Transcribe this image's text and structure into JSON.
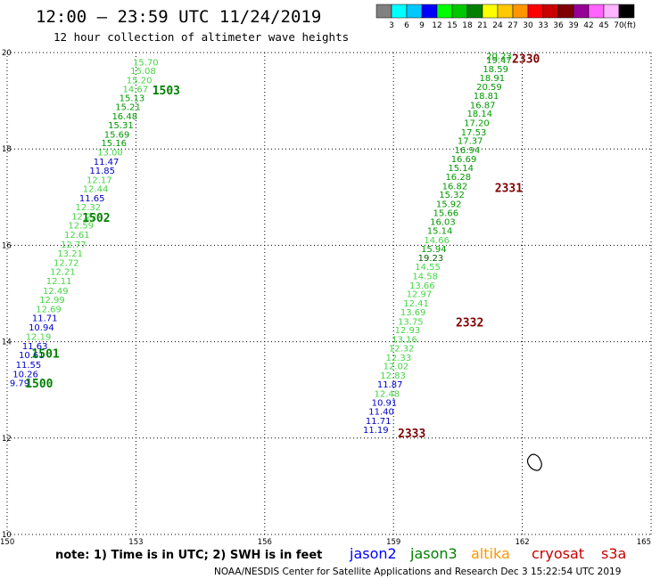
{
  "title": "12:00 – 23:59 UTC 11/24/2019",
  "subtitle": "12 hour collection of altimeter wave heights",
  "color_scale": {
    "unit": "(ft)",
    "labels": [
      "3",
      "6",
      "9",
      "12",
      "15",
      "18",
      "21",
      "24",
      "27",
      "30",
      "33",
      "36",
      "39",
      "42",
      "45",
      "70"
    ],
    "colors": [
      "#808080",
      "#00ffff",
      "#00c8ff",
      "#0000ff",
      "#00ff00",
      "#00c800",
      "#008000",
      "#ffff00",
      "#ffc800",
      "#ff9600",
      "#ff0000",
      "#c80000",
      "#800000",
      "#960096",
      "#ff64ff",
      "#ffb4ff",
      "#000000"
    ]
  },
  "note": "note:  1) Time is in UTC;  2) SWH is in feet",
  "satellites": [
    {
      "name": "jason2",
      "color": "#0000ff"
    },
    {
      "name": "jason3",
      "color": "#008000"
    },
    {
      "name": "altika",
      "color": "#ff9600"
    },
    {
      "name": "cryosat",
      "color": "#c80000"
    },
    {
      "name": "s3a",
      "color": "#c80000"
    }
  ],
  "footer": "NOAA/NESDIS Center for Satellite Applications and Research    Dec  3 15:22:54 UTC 2019",
  "chart_data": {
    "type": "scatter",
    "xlim": [
      150,
      165
    ],
    "ylim": [
      10,
      20
    ],
    "x_ticks": [
      "150",
      "153",
      "156",
      "159",
      "162",
      "165"
    ],
    "y_ticks": [
      "10",
      "12",
      "14",
      "16",
      "18",
      "20"
    ],
    "grid": true,
    "point_colors": {
      "lightgreen": "#44d644",
      "green": "#009900",
      "darkgreen": "#006400",
      "blue": "#0000cc"
    },
    "points": [
      {
        "x": 152.93,
        "y": 19.8,
        "v": "15.70",
        "c": "lightgreen"
      },
      {
        "x": 152.87,
        "y": 19.62,
        "v": "15.08",
        "c": "lightgreen"
      },
      {
        "x": 152.78,
        "y": 19.43,
        "v": "15.20",
        "c": "lightgreen"
      },
      {
        "x": 152.69,
        "y": 19.24,
        "v": "14.67",
        "c": "lightgreen"
      },
      {
        "x": 152.61,
        "y": 19.06,
        "v": "15.13",
        "c": "green"
      },
      {
        "x": 152.52,
        "y": 18.87,
        "v": "15.21",
        "c": "green"
      },
      {
        "x": 152.44,
        "y": 18.68,
        "v": "16.48",
        "c": "green"
      },
      {
        "x": 152.35,
        "y": 18.49,
        "v": "15.31",
        "c": "green"
      },
      {
        "x": 152.26,
        "y": 18.3,
        "v": "15.69",
        "c": "green"
      },
      {
        "x": 152.19,
        "y": 18.12,
        "v": "15.16",
        "c": "green"
      },
      {
        "x": 152.1,
        "y": 17.93,
        "v": "13.00",
        "c": "lightgreen"
      },
      {
        "x": 152.01,
        "y": 17.74,
        "v": "11.47",
        "c": "blue"
      },
      {
        "x": 151.92,
        "y": 17.55,
        "v": "11.85",
        "c": "blue"
      },
      {
        "x": 151.85,
        "y": 17.36,
        "v": "12.17",
        "c": "lightgreen"
      },
      {
        "x": 151.76,
        "y": 17.17,
        "v": "12.44",
        "c": "lightgreen"
      },
      {
        "x": 151.68,
        "y": 16.98,
        "v": "11.65",
        "c": "blue"
      },
      {
        "x": 151.59,
        "y": 16.79,
        "v": "12.32",
        "c": "lightgreen"
      },
      {
        "x": 151.5,
        "y": 16.6,
        "v": "12.22",
        "c": "lightgreen"
      },
      {
        "x": 151.42,
        "y": 16.41,
        "v": "12.59",
        "c": "lightgreen"
      },
      {
        "x": 151.33,
        "y": 16.22,
        "v": "12.61",
        "c": "lightgreen"
      },
      {
        "x": 151.25,
        "y": 16.02,
        "v": "12.77",
        "c": "lightgreen"
      },
      {
        "x": 151.17,
        "y": 15.83,
        "v": "13.21",
        "c": "lightgreen"
      },
      {
        "x": 151.08,
        "y": 15.64,
        "v": "12.72",
        "c": "lightgreen"
      },
      {
        "x": 151.0,
        "y": 15.45,
        "v": "12.21",
        "c": "lightgreen"
      },
      {
        "x": 150.91,
        "y": 15.26,
        "v": "12.11",
        "c": "lightgreen"
      },
      {
        "x": 150.83,
        "y": 15.06,
        "v": "12.49",
        "c": "lightgreen"
      },
      {
        "x": 150.75,
        "y": 14.87,
        "v": "12.99",
        "c": "lightgreen"
      },
      {
        "x": 150.67,
        "y": 14.68,
        "v": "12.69",
        "c": "lightgreen"
      },
      {
        "x": 150.58,
        "y": 14.49,
        "v": "11.71",
        "c": "blue"
      },
      {
        "x": 150.5,
        "y": 14.3,
        "v": "10.94",
        "c": "blue"
      },
      {
        "x": 150.43,
        "y": 14.1,
        "v": "12.19",
        "c": "lightgreen"
      },
      {
        "x": 150.35,
        "y": 13.91,
        "v": "11.63",
        "c": "blue"
      },
      {
        "x": 150.27,
        "y": 13.72,
        "v": "10.61",
        "c": "blue"
      },
      {
        "x": 150.2,
        "y": 13.52,
        "v": "11.55",
        "c": "blue"
      },
      {
        "x": 150.13,
        "y": 13.33,
        "v": "10.26",
        "c": "blue"
      },
      {
        "x": 150.06,
        "y": 13.14,
        "v": "9.79",
        "c": "blue"
      },
      {
        "x": 161.16,
        "y": 19.93,
        "v": "20.23",
        "c": "green"
      },
      {
        "x": 161.16,
        "y": 19.84,
        "v": "19.47",
        "c": "green"
      },
      {
        "x": 161.08,
        "y": 19.66,
        "v": "18.59",
        "c": "green"
      },
      {
        "x": 161.0,
        "y": 19.47,
        "v": "18.91",
        "c": "green"
      },
      {
        "x": 160.93,
        "y": 19.29,
        "v": "20.59",
        "c": "green"
      },
      {
        "x": 160.86,
        "y": 19.1,
        "v": "18.81",
        "c": "green"
      },
      {
        "x": 160.78,
        "y": 18.91,
        "v": "16.87",
        "c": "green"
      },
      {
        "x": 160.71,
        "y": 18.73,
        "v": "18.14",
        "c": "green"
      },
      {
        "x": 160.64,
        "y": 18.54,
        "v": "17.20",
        "c": "green"
      },
      {
        "x": 160.57,
        "y": 18.35,
        "v": "17.53",
        "c": "green"
      },
      {
        "x": 160.49,
        "y": 18.17,
        "v": "17.37",
        "c": "green"
      },
      {
        "x": 160.42,
        "y": 17.98,
        "v": "16.94",
        "c": "green"
      },
      {
        "x": 160.34,
        "y": 17.79,
        "v": "16.69",
        "c": "green"
      },
      {
        "x": 160.27,
        "y": 17.61,
        "v": "15.14",
        "c": "green"
      },
      {
        "x": 160.21,
        "y": 17.42,
        "v": "16.28",
        "c": "green"
      },
      {
        "x": 160.13,
        "y": 17.23,
        "v": "16.82",
        "c": "green"
      },
      {
        "x": 160.06,
        "y": 17.05,
        "v": "15.32",
        "c": "green"
      },
      {
        "x": 159.99,
        "y": 16.86,
        "v": "15.92",
        "c": "green"
      },
      {
        "x": 159.92,
        "y": 16.67,
        "v": "15.66",
        "c": "green"
      },
      {
        "x": 159.85,
        "y": 16.49,
        "v": "16.03",
        "c": "green"
      },
      {
        "x": 159.78,
        "y": 16.3,
        "v": "15.14",
        "c": "green"
      },
      {
        "x": 159.71,
        "y": 16.11,
        "v": "14.66",
        "c": "lightgreen"
      },
      {
        "x": 159.64,
        "y": 15.92,
        "v": "15.94",
        "c": "green"
      },
      {
        "x": 159.57,
        "y": 15.74,
        "v": "19.23",
        "c": "darkgreen"
      },
      {
        "x": 159.5,
        "y": 15.55,
        "v": "14.55",
        "c": "lightgreen"
      },
      {
        "x": 159.44,
        "y": 15.36,
        "v": "14.58",
        "c": "lightgreen"
      },
      {
        "x": 159.37,
        "y": 15.17,
        "v": "13.66",
        "c": "lightgreen"
      },
      {
        "x": 159.3,
        "y": 14.99,
        "v": "12.97",
        "c": "lightgreen"
      },
      {
        "x": 159.23,
        "y": 14.8,
        "v": "12.41",
        "c": "lightgreen"
      },
      {
        "x": 159.16,
        "y": 14.61,
        "v": "13.69",
        "c": "lightgreen"
      },
      {
        "x": 159.1,
        "y": 14.42,
        "v": "13.75",
        "c": "lightgreen"
      },
      {
        "x": 159.03,
        "y": 14.24,
        "v": "12.93",
        "c": "lightgreen"
      },
      {
        "x": 158.96,
        "y": 14.05,
        "v": "13.16",
        "c": "lightgreen"
      },
      {
        "x": 158.89,
        "y": 13.86,
        "v": "12.32",
        "c": "lightgreen"
      },
      {
        "x": 158.82,
        "y": 13.67,
        "v": "12.33",
        "c": "lightgreen"
      },
      {
        "x": 158.76,
        "y": 13.49,
        "v": "12.02",
        "c": "lightgreen"
      },
      {
        "x": 158.69,
        "y": 13.3,
        "v": "12.83",
        "c": "lightgreen"
      },
      {
        "x": 158.62,
        "y": 13.11,
        "v": "11.87",
        "c": "blue"
      },
      {
        "x": 158.55,
        "y": 12.92,
        "v": "12.48",
        "c": "lightgreen"
      },
      {
        "x": 158.49,
        "y": 12.74,
        "v": "10.91",
        "c": "blue"
      },
      {
        "x": 158.42,
        "y": 12.55,
        "v": "11.40",
        "c": "blue"
      },
      {
        "x": 158.35,
        "y": 12.36,
        "v": "11.71",
        "c": "blue"
      },
      {
        "x": 158.29,
        "y": 12.17,
        "v": "11.19",
        "c": "blue"
      }
    ],
    "annotations": [
      {
        "text": "1503",
        "x": 153.38,
        "y": 19.22,
        "color": "#008000"
      },
      {
        "text": "1502",
        "x": 151.75,
        "y": 16.58,
        "color": "#008000"
      },
      {
        "text": "1501",
        "x": 150.57,
        "y": 13.76,
        "color": "#008000"
      },
      {
        "text": "1500",
        "x": 150.42,
        "y": 13.14,
        "color": "#008000"
      },
      {
        "text": "2330",
        "x": 161.76,
        "y": 19.88,
        "color": "#800000"
      },
      {
        "text": "2331",
        "x": 161.36,
        "y": 17.2,
        "color": "#800000"
      },
      {
        "text": "2332",
        "x": 160.45,
        "y": 14.41,
        "color": "#800000"
      },
      {
        "text": "2333",
        "x": 159.1,
        "y": 12.11,
        "color": "#800000"
      }
    ]
  }
}
